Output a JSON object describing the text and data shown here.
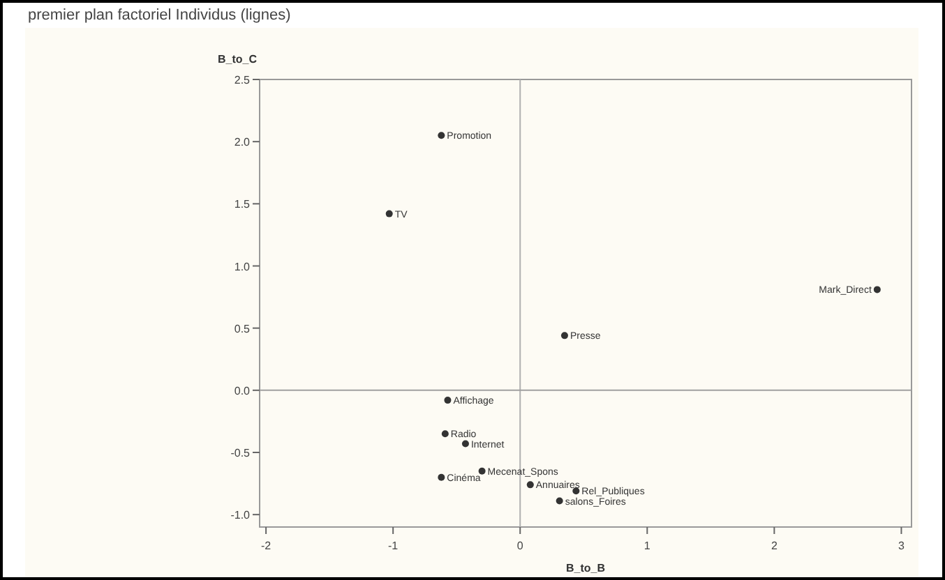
{
  "chart_data": {
    "type": "scatter",
    "title": "premier plan factoriel Individus (lignes)",
    "xlabel": "B_to_B",
    "ylabel": "B_to_C",
    "marker": "circle",
    "grid": false,
    "legend": false,
    "xlim": [
      -2.05,
      3.08
    ],
    "ylim": [
      -1.1,
      2.5
    ],
    "xticks": [
      -2,
      -1,
      0,
      1,
      2,
      3
    ],
    "yticks": [
      {
        "value": -1,
        "label": "-1.0"
      },
      {
        "value": -0.5,
        "label": "-0.5"
      },
      {
        "value": 0,
        "label": "0.0"
      },
      {
        "value": 0.5,
        "label": "0.5"
      },
      {
        "value": 1,
        "label": "1.0"
      },
      {
        "value": 1.5,
        "label": "1.5"
      },
      {
        "value": 2,
        "label": "2.0"
      },
      {
        "value": 2.5,
        "label": "2.5"
      }
    ],
    "ref_lines": [
      {
        "axis": "x",
        "value": 0,
        "color": "#b0b0b0"
      },
      {
        "axis": "y",
        "value": 0,
        "color": "#a0a0a0"
      }
    ],
    "series": [
      {
        "name": "Promotion",
        "color": "#333333",
        "x": [
          -0.62
        ],
        "values": [
          2.05
        ]
      },
      {
        "name": "TV",
        "color": "#333333",
        "x": [
          -1.03
        ],
        "values": [
          1.42
        ]
      },
      {
        "name": "Mark_Direct",
        "color": "#333333",
        "x": [
          2.81
        ],
        "values": [
          0.81
        ]
      },
      {
        "name": "Presse",
        "color": "#333333",
        "x": [
          0.35
        ],
        "values": [
          0.44
        ]
      },
      {
        "name": "Affichage",
        "color": "#333333",
        "x": [
          -0.57
        ],
        "values": [
          -0.08
        ]
      },
      {
        "name": "Radio",
        "color": "#333333",
        "x": [
          -0.59
        ],
        "values": [
          -0.35
        ]
      },
      {
        "name": "Internet",
        "color": "#333333",
        "x": [
          -0.43
        ],
        "values": [
          -0.43
        ]
      },
      {
        "name": "Cinéma",
        "color": "#333333",
        "x": [
          -0.62
        ],
        "values": [
          -0.7
        ]
      },
      {
        "name": "Mecenat_Spons",
        "color": "#333333",
        "x": [
          -0.3
        ],
        "values": [
          -0.65
        ]
      },
      {
        "name": "Annuaires",
        "color": "#333333",
        "x": [
          0.08
        ],
        "values": [
          -0.76
        ]
      },
      {
        "name": "Rel_Publiques",
        "color": "#333333",
        "x": [
          0.44
        ],
        "values": [
          -0.81
        ]
      },
      {
        "name": "salons_Foires",
        "color": "#333333",
        "x": [
          0.31
        ],
        "values": [
          -0.89
        ]
      }
    ]
  }
}
